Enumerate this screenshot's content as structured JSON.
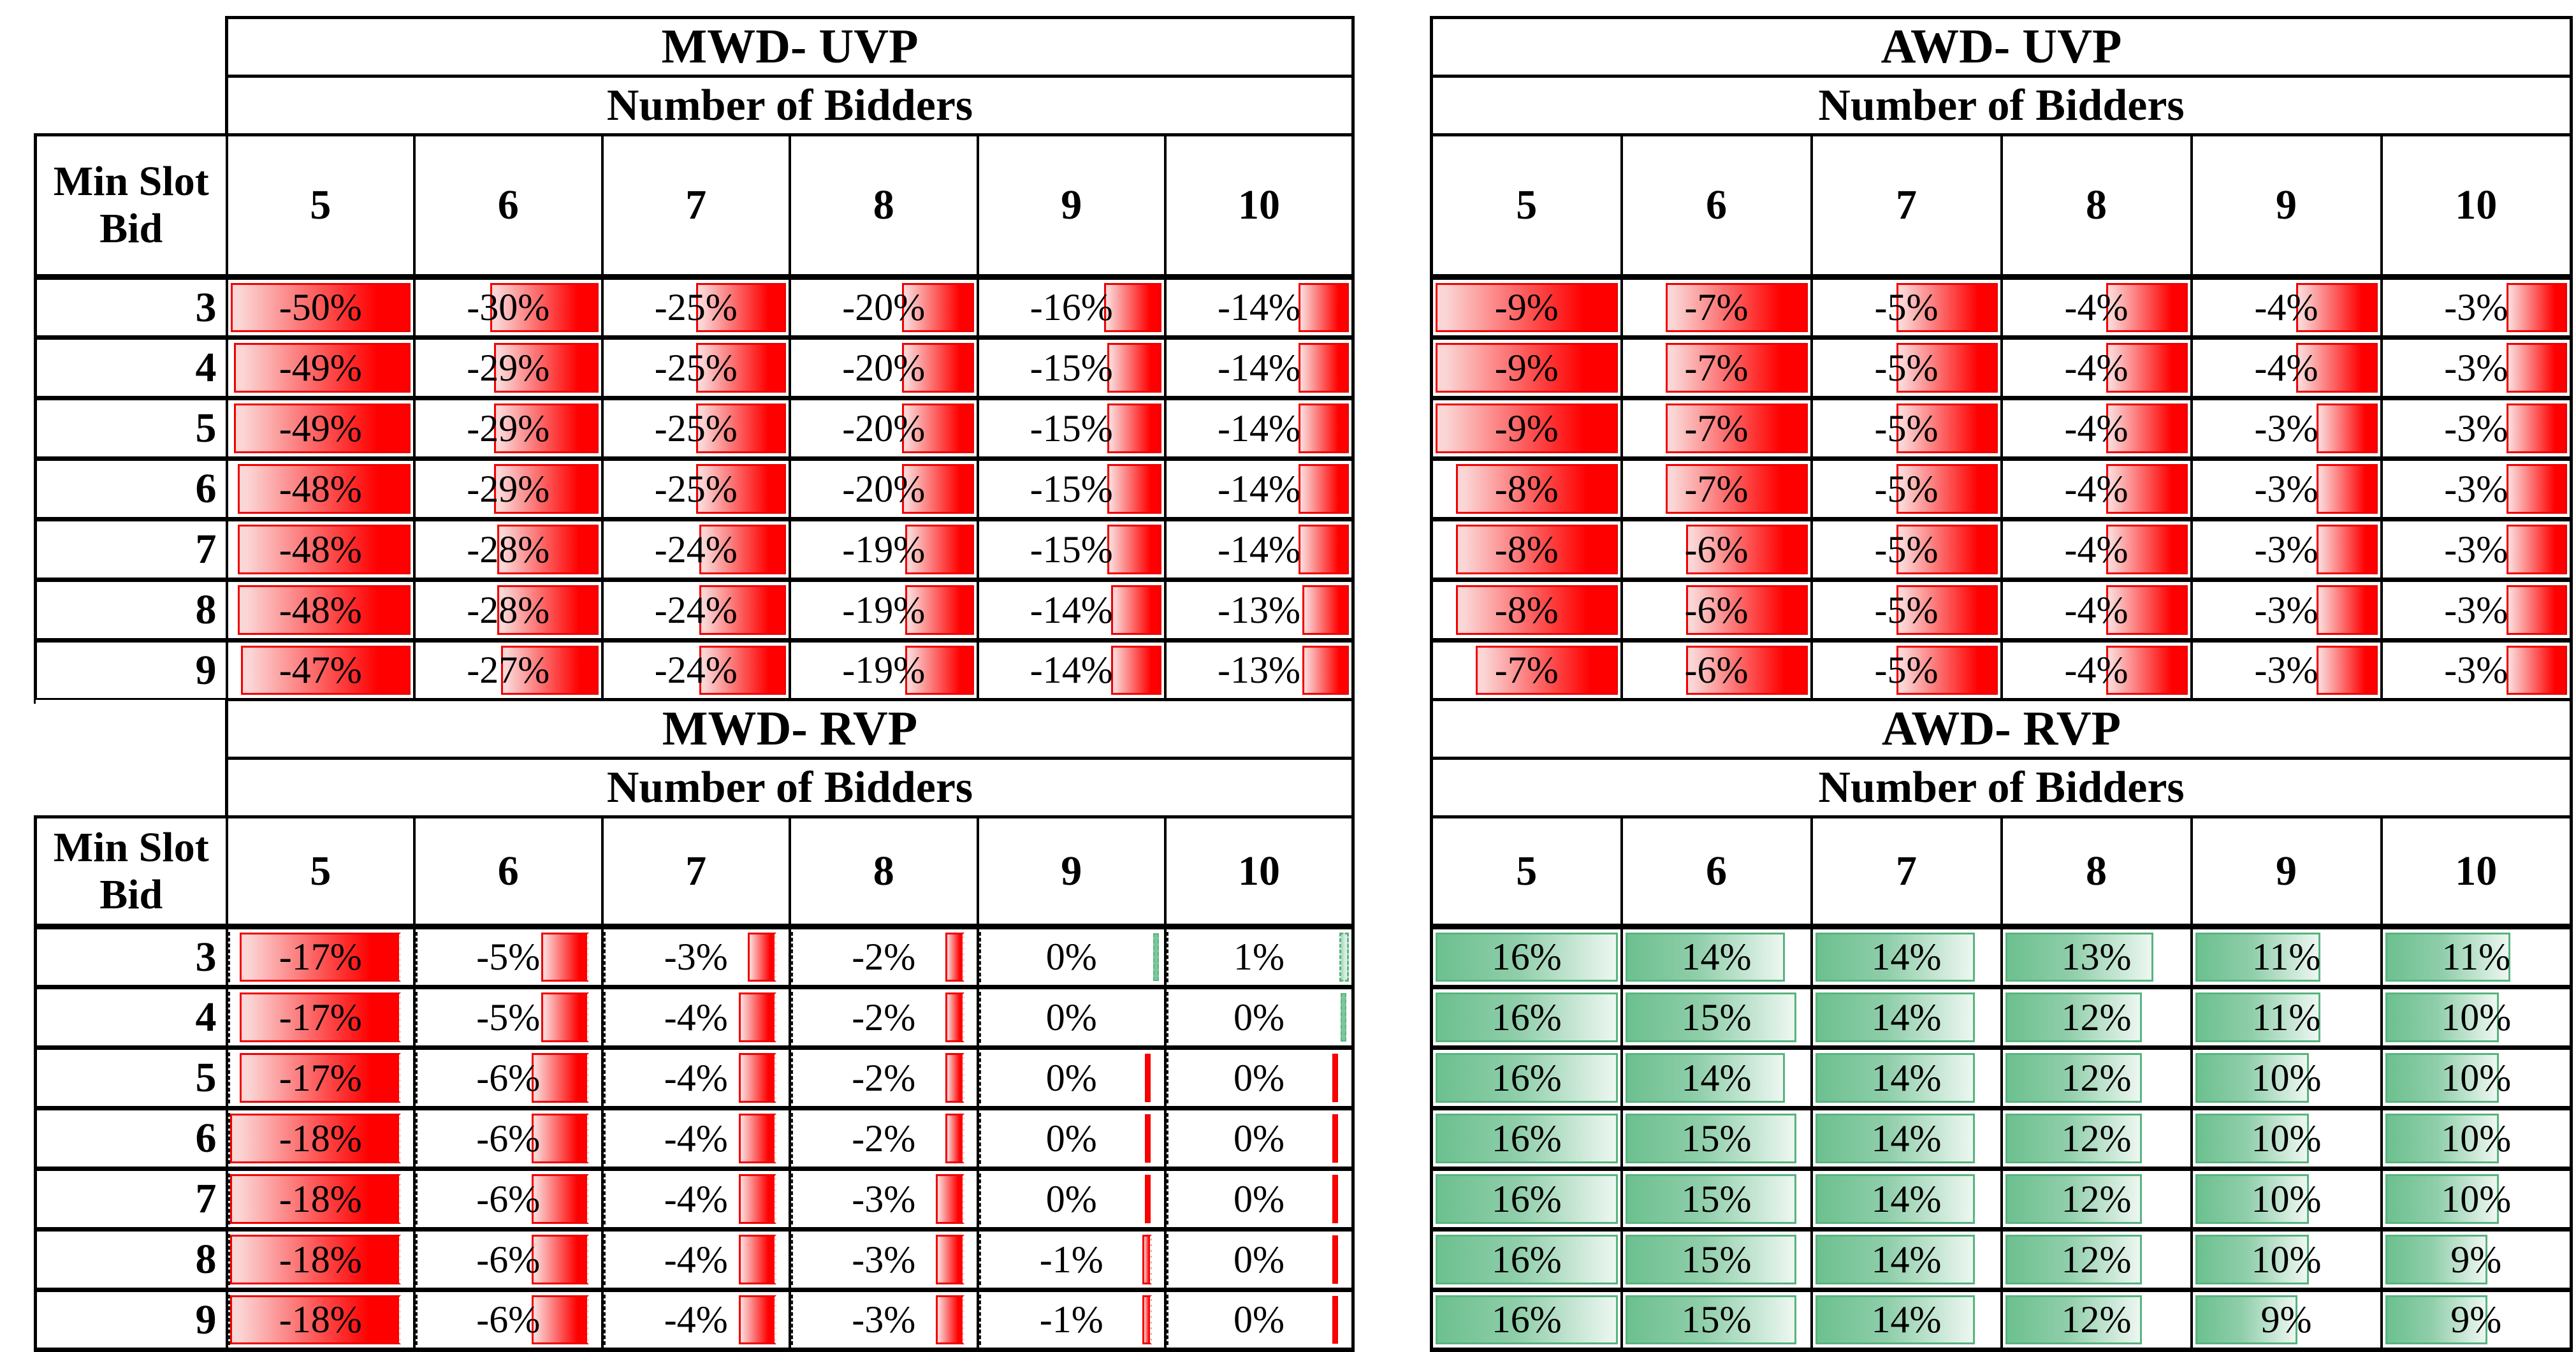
{
  "colors": {
    "background": "#FFFFFF",
    "grid": "#000000",
    "negative_bar_solid": "#FE0000",
    "negative_bar_light": "#FBD6D6",
    "negative_bar_border": "#F00000",
    "positive_bar_solid": "#6CC08F",
    "positive_bar_light": "#EDF7F1",
    "positive_bar_border": "#58B47E"
  },
  "chart_data": [
    {
      "id": "mwd_uvp",
      "type": "heatmap",
      "title": "MWD- UVP",
      "columns_title": "Number of Bidders",
      "rows_title": "Min Slot Bid",
      "columns": [
        5,
        6,
        7,
        8,
        9,
        10
      ],
      "rows": [
        3,
        4,
        5,
        6,
        7,
        8,
        9
      ],
      "values_pct": [
        [
          -50,
          -30,
          -25,
          -20,
          -16,
          -14
        ],
        [
          -49,
          -29,
          -25,
          -20,
          -15,
          -14
        ],
        [
          -49,
          -29,
          -25,
          -20,
          -15,
          -14
        ],
        [
          -48,
          -29,
          -25,
          -20,
          -15,
          -14
        ],
        [
          -48,
          -28,
          -24,
          -19,
          -15,
          -14
        ],
        [
          -48,
          -28,
          -24,
          -19,
          -14,
          -13
        ],
        [
          -47,
          -27,
          -24,
          -19,
          -14,
          -13
        ]
      ],
      "bar": {
        "anchor": "right",
        "palette": "negative",
        "denom": 50
      }
    },
    {
      "id": "awd_uvp",
      "type": "heatmap",
      "title": "AWD- UVP",
      "columns_title": "Number of Bidders",
      "columns": [
        5,
        6,
        7,
        8,
        9,
        10
      ],
      "rows": [
        3,
        4,
        5,
        6,
        7,
        8,
        9
      ],
      "values_pct": [
        [
          -9,
          -7,
          -5,
          -4,
          -4,
          -3
        ],
        [
          -9,
          -7,
          -5,
          -4,
          -4,
          -3
        ],
        [
          -9,
          -7,
          -5,
          -4,
          -3,
          -3
        ],
        [
          -8,
          -7,
          -5,
          -4,
          -3,
          -3
        ],
        [
          -8,
          -6,
          -5,
          -4,
          -3,
          -3
        ],
        [
          -8,
          -6,
          -5,
          -4,
          -3,
          -3
        ],
        [
          -7,
          -6,
          -5,
          -4,
          -3,
          -3
        ]
      ],
      "bar": {
        "anchor": "right",
        "palette": "negative",
        "denom": 9
      }
    },
    {
      "id": "mwd_rvp",
      "type": "heatmap",
      "title": "MWD- RVP",
      "columns_title": "Number of Bidders",
      "rows_title": "Min Slot Bid",
      "columns": [
        5,
        6,
        7,
        8,
        9,
        10
      ],
      "rows": [
        3,
        4,
        5,
        6,
        7,
        8,
        9
      ],
      "values_pct": [
        [
          -17,
          -5,
          -3,
          -2,
          0,
          1
        ],
        [
          -17,
          -5,
          -4,
          -2,
          0,
          0
        ],
        [
          -17,
          -6,
          -4,
          -2,
          0,
          0
        ],
        [
          -18,
          -6,
          -4,
          -2,
          0,
          0
        ],
        [
          -18,
          -6,
          -4,
          -3,
          0,
          0
        ],
        [
          -18,
          -6,
          -4,
          -3,
          -1,
          0
        ],
        [
          -18,
          -6,
          -4,
          -3,
          -1,
          0
        ]
      ],
      "bar": {
        "anchor": "axis",
        "palette": "mixed",
        "denom": 19,
        "axis_fraction": 0.947
      },
      "zero_slivers": [
        {
          "row": 0,
          "col": 4,
          "color": "positive"
        },
        {
          "row": 1,
          "col": 5,
          "color": "positive"
        },
        {
          "row": 2,
          "col": 4,
          "color": "negative"
        },
        {
          "row": 3,
          "col": 4,
          "color": "negative"
        },
        {
          "row": 4,
          "col": 4,
          "color": "negative"
        },
        {
          "row": 2,
          "col": 5,
          "color": "negative"
        },
        {
          "row": 3,
          "col": 5,
          "color": "negative"
        },
        {
          "row": 4,
          "col": 5,
          "color": "negative"
        },
        {
          "row": 5,
          "col": 5,
          "color": "negative"
        },
        {
          "row": 6,
          "col": 5,
          "color": "negative"
        }
      ]
    },
    {
      "id": "awd_rvp",
      "type": "heatmap",
      "title": "AWD- RVP",
      "columns_title": "Number of Bidders",
      "columns": [
        5,
        6,
        7,
        8,
        9,
        10
      ],
      "rows": [
        3,
        4,
        5,
        6,
        7,
        8,
        9
      ],
      "values_pct": [
        [
          16,
          14,
          14,
          13,
          11,
          11
        ],
        [
          16,
          15,
          14,
          12,
          11,
          10
        ],
        [
          16,
          14,
          14,
          12,
          10,
          10
        ],
        [
          16,
          15,
          14,
          12,
          10,
          10
        ],
        [
          16,
          15,
          14,
          12,
          10,
          10
        ],
        [
          16,
          15,
          14,
          12,
          10,
          9
        ],
        [
          16,
          15,
          14,
          12,
          9,
          9
        ]
      ],
      "bar": {
        "anchor": "left",
        "palette": "positive",
        "denom": 16
      }
    }
  ]
}
